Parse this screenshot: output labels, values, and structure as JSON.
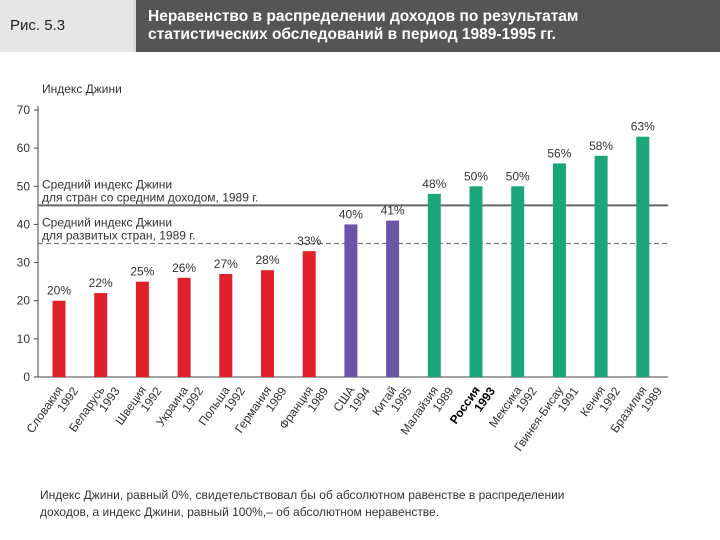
{
  "figure": {
    "label": "Рис. 5.3",
    "title_lines": [
      "Неравенство в распределении доходов по результатам",
      "статистических обследований в период 1989-1995 гг."
    ]
  },
  "chart_data": {
    "type": "bar",
    "ylabel": "Индекс Джини",
    "ylim": [
      0,
      70
    ],
    "yticks": [
      0,
      10,
      20,
      30,
      40,
      50,
      60,
      70
    ],
    "categories": [
      {
        "name": "Словакия",
        "year": "1992"
      },
      {
        "name": "Беларусь",
        "year": "1993"
      },
      {
        "name": "Швеция",
        "year": "1992"
      },
      {
        "name": "Украина",
        "year": "1992"
      },
      {
        "name": "Польша",
        "year": "1992"
      },
      {
        "name": "Германия",
        "year": "1989"
      },
      {
        "name": "Франция",
        "year": "1989"
      },
      {
        "name": "США",
        "year": "1994"
      },
      {
        "name": "Китай",
        "year": "1995"
      },
      {
        "name": "Малайзия",
        "year": "1989"
      },
      {
        "name": "Россия",
        "year": "1993",
        "bold": true
      },
      {
        "name": "Мексика",
        "year": "1992"
      },
      {
        "name": "Гвинея-Бисау",
        "year": "1991"
      },
      {
        "name": "Кения",
        "year": "1992"
      },
      {
        "name": "Бразилия",
        "year": "1989"
      }
    ],
    "values": [
      20,
      22,
      25,
      26,
      27,
      28,
      33,
      40,
      41,
      48,
      50,
      50,
      56,
      58,
      63
    ],
    "value_labels": [
      "20%",
      "22%",
      "25%",
      "26%",
      "27%",
      "28%",
      "33%",
      "40%",
      "41%",
      "48%",
      "50%",
      "50%",
      "56%",
      "58%",
      "63%"
    ],
    "bar_colors": [
      "#e0202a",
      "#e0202a",
      "#e0202a",
      "#e0202a",
      "#e0202a",
      "#e0202a",
      "#e0202a",
      "#6a56a8",
      "#6a56a8",
      "#1aa67a",
      "#1aa67a",
      "#1aa67a",
      "#1aa67a",
      "#1aa67a",
      "#1aa67a"
    ],
    "reference_lines": [
      {
        "value": 45,
        "style": "solid",
        "color": "#666666",
        "label_lines": [
          "Средний индекс Джини",
          "для стран со средним доходом, 1989 г."
        ]
      },
      {
        "value": 35,
        "style": "dashed",
        "color": "#777777",
        "label_lines": [
          "Средний индекс Джини",
          "для развитых стран, 1989 г."
        ]
      }
    ],
    "grid": false
  },
  "note_lines": [
    "Индекс Джини, равный 0%, свидетельствовал бы об абсолютном равенстве в распределении",
    "доходов, а индекс Джини, равный 100%,– об абсолютном неравенстве."
  ]
}
